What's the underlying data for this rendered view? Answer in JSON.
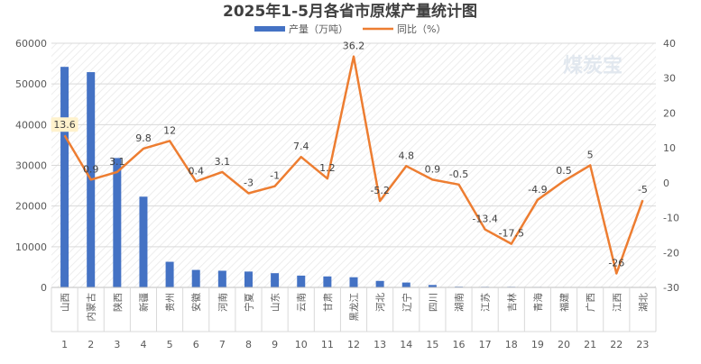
{
  "chart_data": {
    "type": "bar+line",
    "title": "2025年1-5月各省市原煤产量统计图",
    "legend": {
      "position": "top-center",
      "items": [
        "产量（万吨）",
        "同比（%）"
      ]
    },
    "watermark": "煤炭宝",
    "categories": [
      "山西",
      "内蒙古",
      "陕西",
      "新疆",
      "贵州",
      "安徽",
      "河南",
      "宁夏",
      "山东",
      "云南",
      "甘肃",
      "黑龙江",
      "河北",
      "辽宁",
      "四川",
      "湖南",
      "江苏",
      "吉林",
      "青海",
      "福建",
      "广西",
      "江西",
      "湖北"
    ],
    "index_labels": [
      "1",
      "2",
      "3",
      "4",
      "5",
      "6",
      "7",
      "8",
      "9",
      "10",
      "11",
      "12",
      "13",
      "14",
      "15",
      "16",
      "17",
      "18",
      "19",
      "20",
      "21",
      "22",
      "23"
    ],
    "series": [
      {
        "name": "产量（万吨）",
        "type": "bar",
        "axis": "left",
        "color": "#4472c4",
        "values": [
          54200,
          52900,
          31800,
          22300,
          6300,
          4300,
          4100,
          3900,
          3500,
          2900,
          2700,
          2500,
          1600,
          1200,
          600,
          180,
          150,
          150,
          120,
          110,
          100,
          70,
          60
        ]
      },
      {
        "name": "同比（%）",
        "type": "line",
        "axis": "right",
        "color": "#ed7d31",
        "values": [
          13.6,
          0.9,
          3.1,
          9.8,
          12,
          0.4,
          3.1,
          -3,
          -1,
          7.4,
          1.2,
          36.2,
          -5.2,
          4.8,
          0.9,
          -0.5,
          -13.4,
          -17.5,
          -4.9,
          0.5,
          5,
          -26,
          -5
        ],
        "labels": [
          "13.6",
          "0.9",
          "3.1",
          "9.8",
          "12",
          "0.4",
          "3.1",
          "-3",
          "-1",
          "7.4",
          "1.2",
          "36.2",
          "-5.2",
          "4.8",
          "0.9",
          "-0.5",
          "-13.4",
          "-17.5",
          "-4.9",
          "0.5",
          "5",
          "-26",
          "-5"
        ]
      }
    ],
    "y_left": {
      "min": 0,
      "max": 60000,
      "ticks": [
        "0",
        "10000",
        "20000",
        "30000",
        "40000",
        "50000",
        "60000"
      ]
    },
    "y_right": {
      "min": -30,
      "max": 40,
      "ticks": [
        "-30",
        "-20",
        "-10",
        "0",
        "10",
        "20",
        "30",
        "40"
      ]
    },
    "grid": true
  }
}
